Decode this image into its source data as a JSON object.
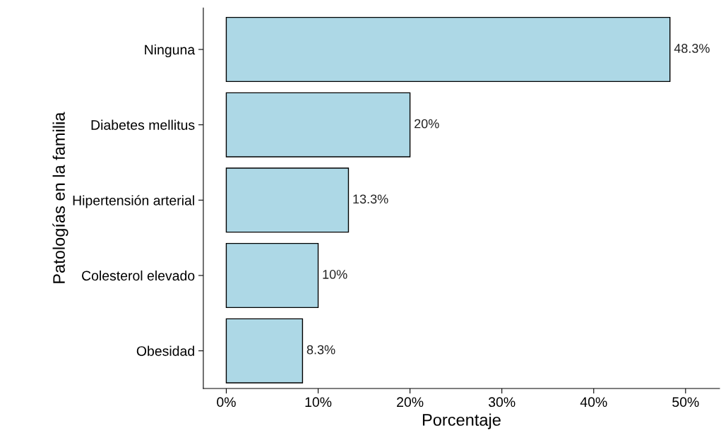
{
  "chart_data": {
    "type": "bar",
    "orientation": "horizontal",
    "xlabel": "Porcentaje",
    "ylabel": "Patologías en la familia",
    "categories": [
      "Ninguna",
      "Diabetes mellitus",
      "Hipertensión arterial",
      "Colesterol elevado",
      "Obesidad"
    ],
    "values": [
      48.3,
      20,
      13.3,
      10,
      8.3
    ],
    "value_labels": [
      "48.3%",
      "20%",
      "13.3%",
      "10%",
      "8.3%"
    ],
    "color": "#add8e6",
    "xlim": [
      -2.5,
      53.7
    ],
    "xticks": [
      {
        "value": 0,
        "label": "0%"
      },
      {
        "value": 10,
        "label": "10%"
      },
      {
        "value": 20,
        "label": "20%"
      },
      {
        "value": 30,
        "label": "30%"
      },
      {
        "value": 40,
        "label": "40%"
      },
      {
        "value": 50,
        "label": "50%"
      }
    ],
    "grid": false,
    "legend": false
  }
}
